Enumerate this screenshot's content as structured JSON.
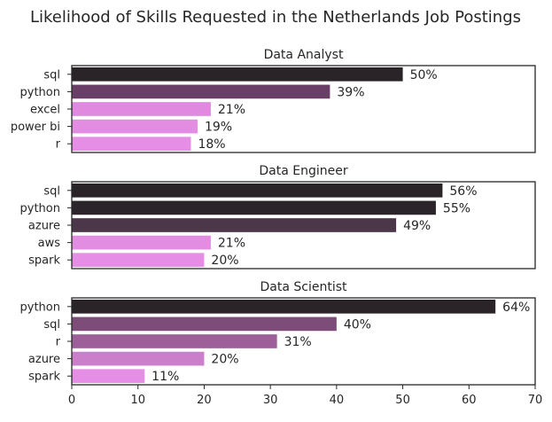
{
  "chart_data": {
    "type": "bar",
    "orientation": "horizontal",
    "title": "Likelihood of Skills Requested in the Netherlands Job Postings",
    "xlim": [
      0,
      70
    ],
    "xticks": [
      "0",
      "10",
      "20",
      "30",
      "40",
      "50",
      "60",
      "70"
    ],
    "panels": [
      {
        "title": "Data Analyst",
        "categories": [
          "sql",
          "python",
          "excel",
          "power bi",
          "r"
        ],
        "values": [
          50,
          39,
          21,
          19,
          18
        ],
        "labels": [
          "50%",
          "39%",
          "21%",
          "19%",
          "18%"
        ],
        "colors": [
          "#2a2429",
          "#6a3f67",
          "#e189e0",
          "#e38de2",
          "#e68ee6"
        ]
      },
      {
        "title": "Data Engineer",
        "categories": [
          "sql",
          "python",
          "azure",
          "aws",
          "spark"
        ],
        "values": [
          56,
          55,
          49,
          21,
          20
        ],
        "labels": [
          "56%",
          "55%",
          "49%",
          "21%",
          "20%"
        ],
        "colors": [
          "#2a2429",
          "#2b252b",
          "#4c3649",
          "#e38de2",
          "#e68ee6"
        ]
      },
      {
        "title": "Data Scientist",
        "categories": [
          "python",
          "sql",
          "r",
          "azure",
          "spark"
        ],
        "values": [
          64,
          40,
          31,
          20,
          11
        ],
        "labels": [
          "64%",
          "40%",
          "31%",
          "20%",
          "11%"
        ],
        "colors": [
          "#2a2429",
          "#7d4c79",
          "#9d5e9a",
          "#cb7ec9",
          "#e68ee6"
        ]
      }
    ]
  }
}
